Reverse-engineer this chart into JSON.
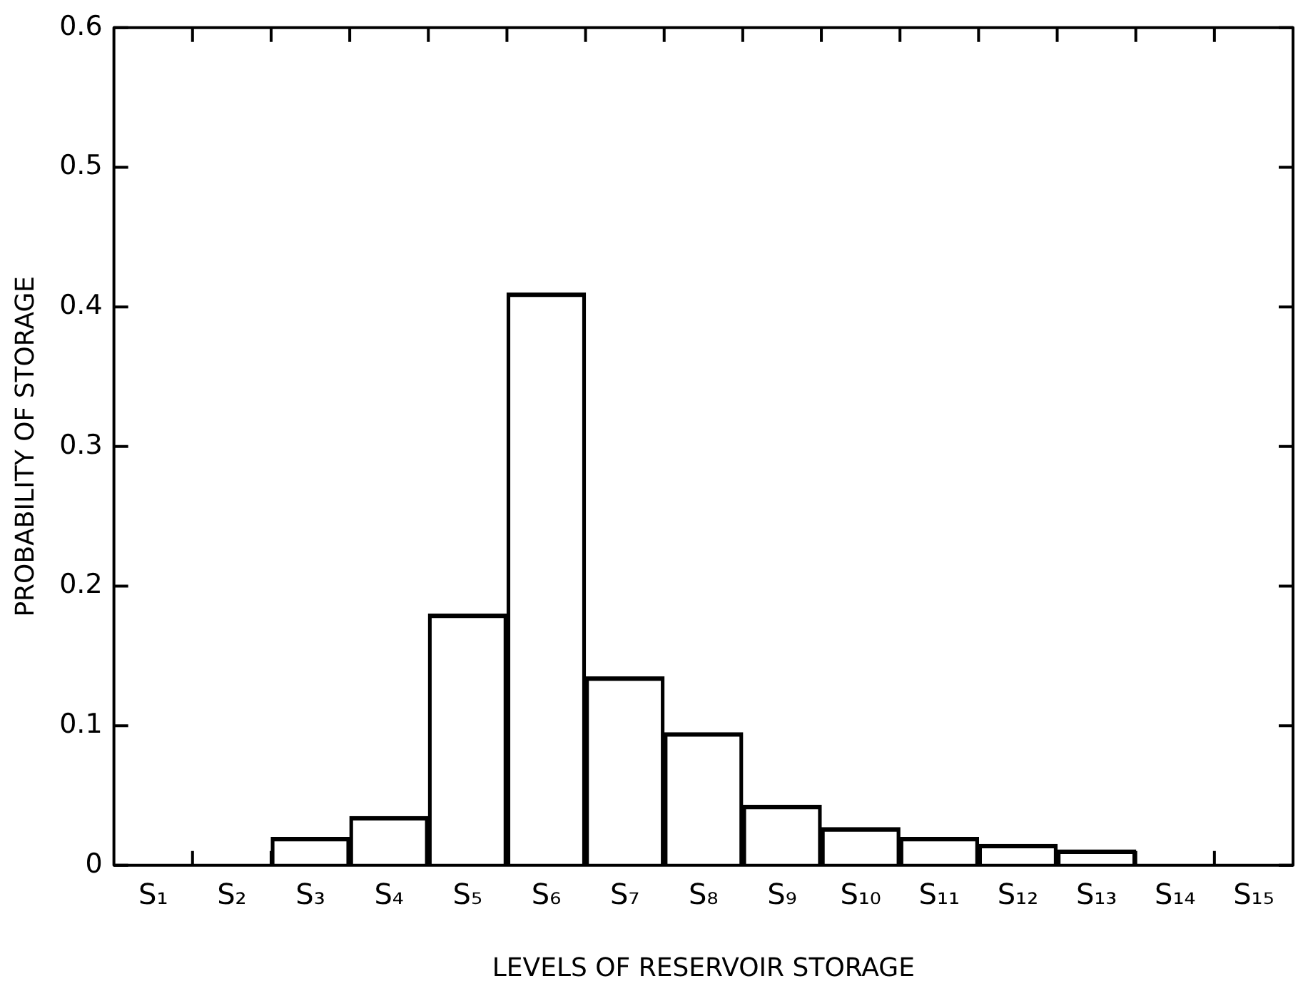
{
  "chart_data": {
    "type": "bar",
    "xlabel": "LEVELS OF RESERVOIR STORAGE",
    "ylabel": "PROBABILITY OF STORAGE",
    "categories": [
      "S₁",
      "S₂",
      "S₃",
      "S₄",
      "S₅",
      "S₆",
      "S₇",
      "S₈",
      "S₉",
      "S₁₀",
      "S₁₁",
      "S₁₂",
      "S₁₃",
      "S₁₄",
      "S₁₅"
    ],
    "values": [
      null,
      null,
      0.02,
      0.035,
      0.18,
      0.41,
      0.135,
      0.095,
      0.043,
      0.027,
      0.02,
      0.015,
      0.011,
      null,
      null
    ],
    "color": "#000000",
    "ylim": [
      0,
      0.6
    ],
    "yticks": [
      0,
      0.1,
      0.2,
      0.3,
      0.4,
      0.5,
      0.6
    ],
    "grid": false
  }
}
